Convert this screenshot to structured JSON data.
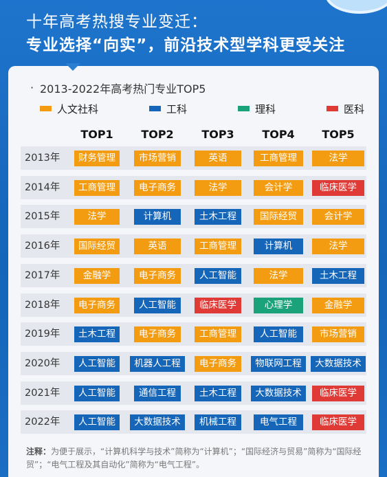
{
  "header": {
    "line1": "十年高考热搜专业变迁：",
    "line2": "专业选择“向实”，前沿技术型学科更受关注"
  },
  "chart_data": {
    "type": "table",
    "title": "2013-2022年高考热门专业TOP5",
    "columns": [
      "TOP1",
      "TOP2",
      "TOP3",
      "TOP4",
      "TOP5"
    ],
    "legend": [
      {
        "label": "人文社科",
        "color": "#f39c12"
      },
      {
        "label": "工科",
        "color": "#1565b8"
      },
      {
        "label": "理科",
        "color": "#1aa37a"
      },
      {
        "label": "医科",
        "color": "#e03a36"
      }
    ],
    "rows": [
      {
        "year": "2013年",
        "cells": [
          [
            "财务管理",
            "人文社科"
          ],
          [
            "市场营销",
            "人文社科"
          ],
          [
            "英语",
            "人文社科"
          ],
          [
            "工商管理",
            "人文社科"
          ],
          [
            "法学",
            "人文社科"
          ]
        ]
      },
      {
        "year": "2014年",
        "cells": [
          [
            "工商管理",
            "人文社科"
          ],
          [
            "电子商务",
            "人文社科"
          ],
          [
            "法学",
            "人文社科"
          ],
          [
            "会计学",
            "人文社科"
          ],
          [
            "临床医学",
            "医科"
          ]
        ]
      },
      {
        "year": "2015年",
        "cells": [
          [
            "法学",
            "人文社科"
          ],
          [
            "计算机",
            "工科"
          ],
          [
            "土木工程",
            "工科"
          ],
          [
            "国际经贸",
            "人文社科"
          ],
          [
            "会计学",
            "人文社科"
          ]
        ]
      },
      {
        "year": "2016年",
        "cells": [
          [
            "国际经贸",
            "人文社科"
          ],
          [
            "英语",
            "人文社科"
          ],
          [
            "工商管理",
            "人文社科"
          ],
          [
            "计算机",
            "工科"
          ],
          [
            "法学",
            "人文社科"
          ]
        ]
      },
      {
        "year": "2017年",
        "cells": [
          [
            "金融学",
            "人文社科"
          ],
          [
            "电子商务",
            "人文社科"
          ],
          [
            "人工智能",
            "工科"
          ],
          [
            "法学",
            "人文社科"
          ],
          [
            "土木工程",
            "工科"
          ]
        ]
      },
      {
        "year": "2018年",
        "cells": [
          [
            "电子商务",
            "人文社科"
          ],
          [
            "人工智能",
            "工科"
          ],
          [
            "临床医学",
            "医科"
          ],
          [
            "心理学",
            "理科"
          ],
          [
            "金融学",
            "人文社科"
          ]
        ]
      },
      {
        "year": "2019年",
        "cells": [
          [
            "土木工程",
            "工科"
          ],
          [
            "电子商务",
            "人文社科"
          ],
          [
            "工商管理",
            "人文社科"
          ],
          [
            "人工智能",
            "工科"
          ],
          [
            "市场营销",
            "人文社科"
          ]
        ]
      },
      {
        "year": "2020年",
        "cells": [
          [
            "人工智能",
            "工科"
          ],
          [
            "机器人工程",
            "工科"
          ],
          [
            "电子商务",
            "人文社科"
          ],
          [
            "物联网工程",
            "工科"
          ],
          [
            "大数据技术",
            "工科"
          ]
        ]
      },
      {
        "year": "2021年",
        "cells": [
          [
            "人工智能",
            "工科"
          ],
          [
            "通信工程",
            "工科"
          ],
          [
            "土木工程",
            "工科"
          ],
          [
            "大数据技术",
            "工科"
          ],
          [
            "临床医学",
            "医科"
          ]
        ]
      },
      {
        "year": "2022年",
        "cells": [
          [
            "人工智能",
            "工科"
          ],
          [
            "大数据技术",
            "工科"
          ],
          [
            "机械工程",
            "工科"
          ],
          [
            "电气工程",
            "工科"
          ],
          [
            "临床医学",
            "医科"
          ]
        ]
      }
    ]
  },
  "note": {
    "label": "注释：",
    "text": "为便于展示，“计算机科学与技术”简称为“计算机”；“国际经济与贸易”简称为“国际经贸”；“电气工程及其自动化”简称为“电气工程”。"
  }
}
